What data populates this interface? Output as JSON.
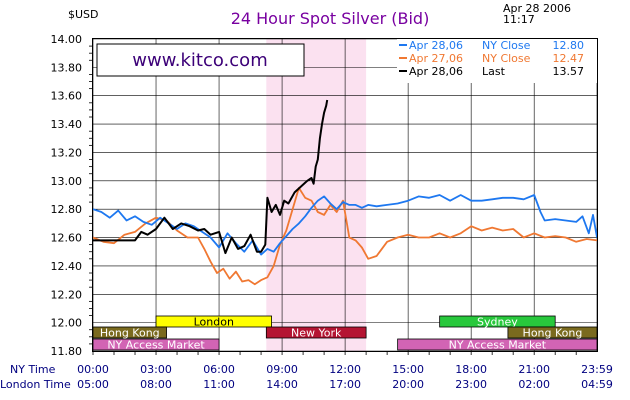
{
  "header": {
    "currency": "$USD",
    "title": "24 Hour Spot Silver (Bid)",
    "date": "Apr 28 2006",
    "time": "11:17",
    "site": "www.kitco.com"
  },
  "colors": {
    "series_apr28_close": "#1e78f0",
    "series_apr27_close": "#f07832",
    "series_last": "#000000",
    "ny_session_shade": "#fbe1f0",
    "grid": "#000000",
    "title": "#7800a0",
    "site_text": "#3c0078",
    "market_london": "#ffff00",
    "market_newyork": "#b41432",
    "market_hongkong": "#7a6a1e",
    "market_sydney": "#28c83c",
    "market_nyaccess": "#d264b4"
  },
  "time_axis": {
    "ny_label": "NY Time",
    "london_label": "London Time",
    "ny_ticks": [
      "00:00",
      "03:00",
      "06:00",
      "09:00",
      "12:00",
      "15:00",
      "18:00",
      "21:00",
      "23:59"
    ],
    "london_ticks": [
      "05:00",
      "08:00",
      "11:00",
      "14:00",
      "17:00",
      "20:00",
      "23:00",
      "02:00",
      "04:59"
    ]
  },
  "markets": [
    {
      "name": "London",
      "color_key": "market_london",
      "start_h": 3.0,
      "end_h": 8.5,
      "row": 0
    },
    {
      "name": "Sydney",
      "color_key": "market_sydney",
      "start_h": 16.5,
      "end_h": 22.0,
      "row": 0
    },
    {
      "name": "Hong Kong",
      "color_key": "market_hongkong",
      "start_h": 0.0,
      "end_h": 3.5,
      "row": 1
    },
    {
      "name": "New York",
      "color_key": "market_newyork",
      "start_h": 8.25,
      "end_h": 13.0,
      "row": 1
    },
    {
      "name": "Hong Kong",
      "color_key": "market_hongkong",
      "start_h": 19.75,
      "end_h": 23.99,
      "row": 1
    },
    {
      "name": "NY Access Market",
      "color_key": "market_nyaccess",
      "start_h": 0.0,
      "end_h": 6.0,
      "row": 2
    },
    {
      "name": "NY Access Market",
      "color_key": "market_nyaccess",
      "start_h": 14.5,
      "end_h": 23.99,
      "row": 2
    }
  ],
  "chart_data": {
    "type": "line",
    "title": "24 Hour Spot Silver (Bid)",
    "ylabel": "$USD",
    "xlabel": "",
    "x_unit": "NY hour",
    "xlim": [
      0,
      23.99
    ],
    "ylim": [
      11.8,
      14.0
    ],
    "yticks": [
      "11.80",
      "12.00",
      "12.20",
      "12.40",
      "12.60",
      "12.80",
      "13.00",
      "13.20",
      "13.40",
      "13.60",
      "13.80",
      "14.00"
    ],
    "grid": true,
    "legend_position": "top-right",
    "shaded_session": [
      8.25,
      13.0
    ],
    "series": [
      {
        "name": "Apr 28,06",
        "legend_label": "NY Close",
        "legend_value": "12.80",
        "color_key": "series_apr28_close",
        "x": [
          0.0,
          0.4,
          0.8,
          1.2,
          1.6,
          2.0,
          2.4,
          2.8,
          3.2,
          3.6,
          4.0,
          4.4,
          4.8,
          5.2,
          5.6,
          6.0,
          6.4,
          6.8,
          7.2,
          7.6,
          8.0,
          8.3,
          8.6,
          8.9,
          9.2,
          9.5,
          9.8,
          10.1,
          10.4,
          10.7,
          11.0,
          11.3,
          11.6,
          11.9,
          12.2,
          12.5,
          12.8,
          13.1,
          13.5,
          14.0,
          14.5,
          15.0,
          15.5,
          16.0,
          16.5,
          17.0,
          17.5,
          18.0,
          18.5,
          19.0,
          19.5,
          20.0,
          20.5,
          21.0,
          21.3,
          21.5,
          22.0,
          22.5,
          23.0,
          23.3,
          23.6,
          23.8,
          23.99
        ],
        "y": [
          12.8,
          12.78,
          12.74,
          12.79,
          12.72,
          12.75,
          12.71,
          12.69,
          12.74,
          12.7,
          12.66,
          12.7,
          12.68,
          12.64,
          12.6,
          12.53,
          12.63,
          12.56,
          12.5,
          12.58,
          12.48,
          12.52,
          12.5,
          12.56,
          12.61,
          12.66,
          12.7,
          12.75,
          12.81,
          12.86,
          12.89,
          12.84,
          12.8,
          12.85,
          12.83,
          12.83,
          12.81,
          12.83,
          12.82,
          12.83,
          12.84,
          12.86,
          12.89,
          12.88,
          12.9,
          12.86,
          12.9,
          12.86,
          12.86,
          12.87,
          12.88,
          12.88,
          12.87,
          12.9,
          12.78,
          12.72,
          12.73,
          12.72,
          12.71,
          12.75,
          12.63,
          12.76,
          12.6
        ]
      },
      {
        "name": "Apr 27,06",
        "legend_label": "NY Close",
        "legend_value": "12.47",
        "color_key": "series_apr27_close",
        "x": [
          0.0,
          0.5,
          1.0,
          1.5,
          2.0,
          2.5,
          3.0,
          3.5,
          4.0,
          4.5,
          5.0,
          5.3,
          5.6,
          5.9,
          6.2,
          6.5,
          6.8,
          7.1,
          7.4,
          7.7,
          8.0,
          8.3,
          8.6,
          8.9,
          9.2,
          9.5,
          9.8,
          10.1,
          10.4,
          10.7,
          11.0,
          11.3,
          11.6,
          11.9,
          12.2,
          12.5,
          12.8,
          13.1,
          13.5,
          14.0,
          14.5,
          15.0,
          15.5,
          16.0,
          16.5,
          17.0,
          17.5,
          18.0,
          18.5,
          19.0,
          19.5,
          20.0,
          20.5,
          21.0,
          21.5,
          22.0,
          22.5,
          23.0,
          23.5,
          23.99
        ],
        "y": [
          12.6,
          12.57,
          12.56,
          12.62,
          12.64,
          12.7,
          12.74,
          12.72,
          12.65,
          12.6,
          12.6,
          12.52,
          12.43,
          12.35,
          12.38,
          12.31,
          12.36,
          12.29,
          12.3,
          12.27,
          12.3,
          12.32,
          12.4,
          12.55,
          12.65,
          12.8,
          12.95,
          12.88,
          12.86,
          12.78,
          12.76,
          12.83,
          12.78,
          12.86,
          12.6,
          12.58,
          12.53,
          12.45,
          12.47,
          12.57,
          12.6,
          12.62,
          12.6,
          12.6,
          12.63,
          12.6,
          12.63,
          12.68,
          12.65,
          12.67,
          12.65,
          12.66,
          12.6,
          12.63,
          12.6,
          12.61,
          12.6,
          12.57,
          12.59,
          12.58
        ]
      },
      {
        "name": "Apr 28,06",
        "legend_label": "Last",
        "legend_value": "13.57",
        "color_key": "series_last",
        "x": [
          0.0,
          0.5,
          1.0,
          1.5,
          2.0,
          2.3,
          2.6,
          3.0,
          3.4,
          3.8,
          4.2,
          4.6,
          5.0,
          5.3,
          5.6,
          6.0,
          6.3,
          6.6,
          6.9,
          7.2,
          7.5,
          7.8,
          8.0,
          8.2,
          8.3,
          8.5,
          8.7,
          8.9,
          9.1,
          9.3,
          9.6,
          9.9,
          10.2,
          10.4,
          10.5,
          10.6,
          10.7,
          10.8,
          10.9,
          11.0,
          11.1,
          11.15
        ],
        "y": [
          12.58,
          12.58,
          12.58,
          12.58,
          12.58,
          12.64,
          12.62,
          12.66,
          12.74,
          12.66,
          12.7,
          12.68,
          12.65,
          12.66,
          12.62,
          12.64,
          12.49,
          12.6,
          12.52,
          12.54,
          12.62,
          12.5,
          12.5,
          12.55,
          12.88,
          12.78,
          12.83,
          12.76,
          12.86,
          12.84,
          12.92,
          12.96,
          13.0,
          13.02,
          12.98,
          13.1,
          13.15,
          13.3,
          13.4,
          13.48,
          13.53,
          13.57
        ]
      }
    ]
  }
}
